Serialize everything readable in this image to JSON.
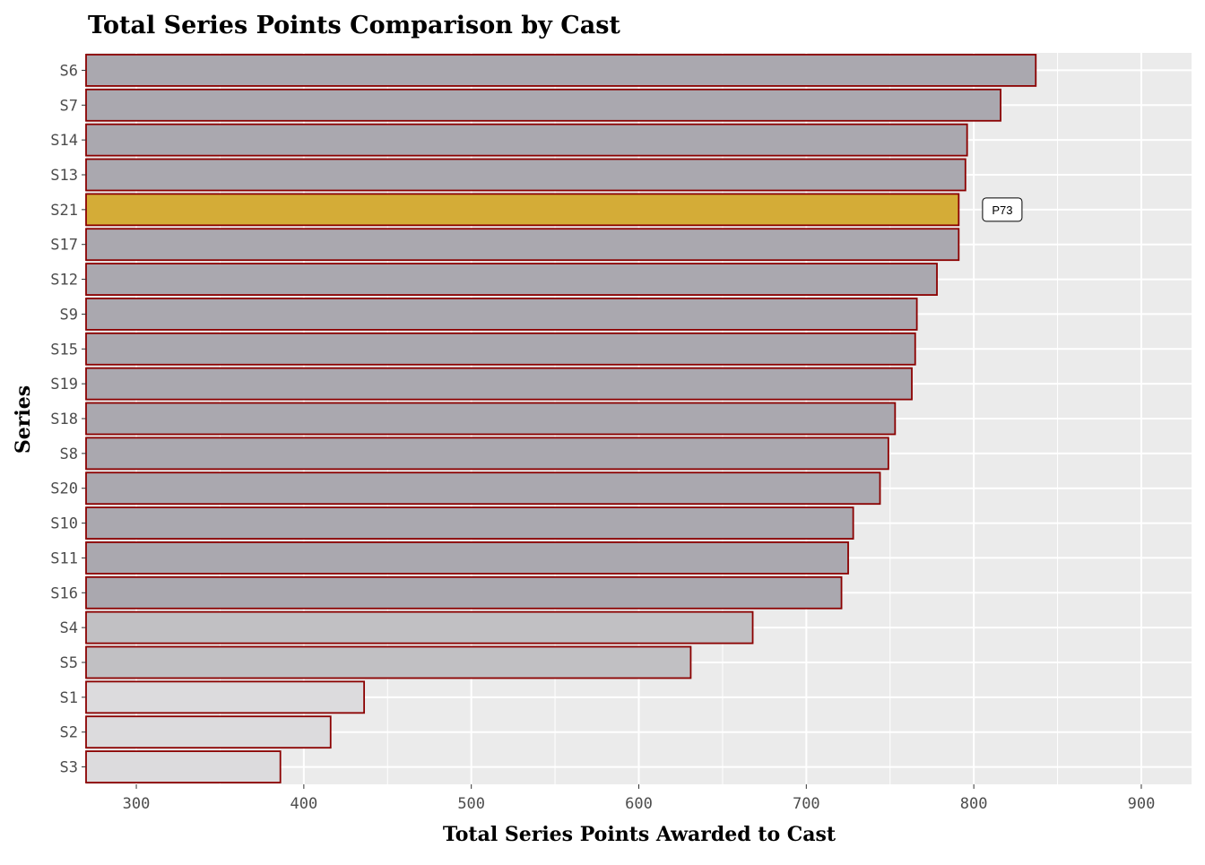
{
  "chart_data": {
    "type": "bar",
    "orientation": "horizontal",
    "title": "Total Series Points Comparison by Cast",
    "xlabel": "Total Series Points Awarded to Cast",
    "ylabel": "Series",
    "xlim": [
      270,
      930
    ],
    "xticks": [
      300,
      400,
      500,
      600,
      700,
      800,
      900
    ],
    "grid": true,
    "legend": "none",
    "categories": [
      "S6",
      "S7",
      "S14",
      "S13",
      "S21",
      "S17",
      "S12",
      "S9",
      "S15",
      "S19",
      "S18",
      "S8",
      "S20",
      "S10",
      "S11",
      "S16",
      "S4",
      "S5",
      "S1",
      "S2",
      "S3"
    ],
    "values": [
      837,
      816,
      796,
      795,
      791,
      791,
      778,
      766,
      765,
      763,
      753,
      749,
      744,
      728,
      725,
      721,
      668,
      631,
      436,
      416,
      386
    ],
    "highlight": "S21",
    "annotation": {
      "category": "S21",
      "x": 817,
      "text": "P73"
    },
    "colors": {
      "highlight": "#d4ac37",
      "recent": "#aaa8af",
      "mid": "#c1c0c3",
      "early": "#dcdbdd",
      "border": "#8b0000",
      "panel": "#ebebeb",
      "grid": "#ffffff"
    }
  }
}
